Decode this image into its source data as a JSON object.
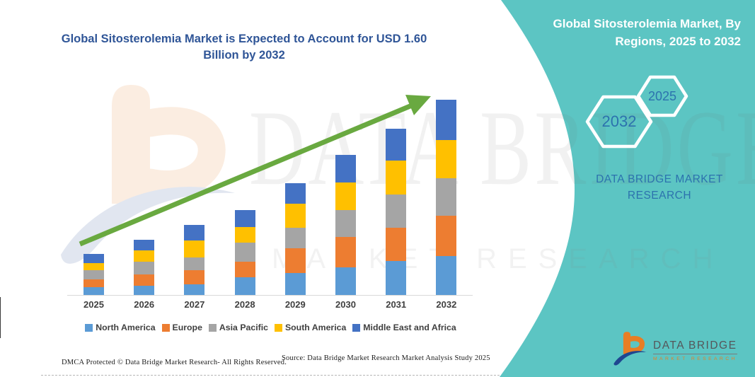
{
  "chart": {
    "title": "Global Sitosterolemia Market is Expected to Account for USD 1.60 Billion by 2032"
  },
  "chart_data": {
    "type": "bar",
    "stacked": true,
    "title": "Global Sitosterolemia Market is Expected to Account for USD 1.60 Billion by 2032",
    "unit": "USD Billion",
    "categories": [
      "2025",
      "2026",
      "2027",
      "2028",
      "2029",
      "2030",
      "2031",
      "2032"
    ],
    "series": [
      {
        "name": "North America",
        "color": "#5B9BD5",
        "values": [
          0.062,
          0.073,
          0.087,
          0.146,
          0.179,
          0.227,
          0.277,
          0.322
        ]
      },
      {
        "name": "Europe",
        "color": "#ED7D31",
        "values": [
          0.064,
          0.098,
          0.116,
          0.125,
          0.202,
          0.247,
          0.276,
          0.328
        ]
      },
      {
        "name": "Asia Pacific",
        "color": "#A5A5A5",
        "values": [
          0.08,
          0.1,
          0.106,
          0.158,
          0.173,
          0.225,
          0.27,
          0.308
        ]
      },
      {
        "name": "South America",
        "color": "#FFC000",
        "values": [
          0.058,
          0.095,
          0.14,
          0.131,
          0.197,
          0.225,
          0.279,
          0.318
        ]
      },
      {
        "name": "Middle East and Africa",
        "color": "#4472C4",
        "values": [
          0.072,
          0.085,
          0.129,
          0.139,
          0.169,
          0.227,
          0.266,
          0.328
        ]
      }
    ],
    "totals_estimated": [
      0.336,
      0.451,
      0.578,
      0.699,
      0.92,
      1.151,
      1.368,
      1.604
    ],
    "ylim": [
      0,
      1.7
    ],
    "y_axis_visible": false,
    "grid": false,
    "legend_position": "bottom",
    "annotation": "green upward trend arrow across bars"
  },
  "right_panel": {
    "title": "Global Sitosterolemia Market, By Regions, 2025 to 2032",
    "hexagons": [
      {
        "label": "2032"
      },
      {
        "label": "2025"
      }
    ],
    "brand": "DATA BRIDGE MARKET RESEARCH"
  },
  "watermark": {
    "big_text": "DATA BRIDGE",
    "row_text": "MARKET RESEARCH"
  },
  "footer": {
    "dmca": "DMCA Protected © Data Bridge Market Research-  All Rights Reserved.",
    "source": "Source: Data Bridge Market Research  Market Analysis Study 2025",
    "logo_name": "DATA BRIDGE",
    "logo_tagline": "MARKET RESEARCH"
  },
  "colors": {
    "teal_panel": "#5CC5C3",
    "title_blue": "#2F5597",
    "panel_text_blue": "#2C72AE",
    "arrow_green": "#69A940",
    "logo_orange": "#E87E24",
    "logo_blue": "#1F4690"
  }
}
